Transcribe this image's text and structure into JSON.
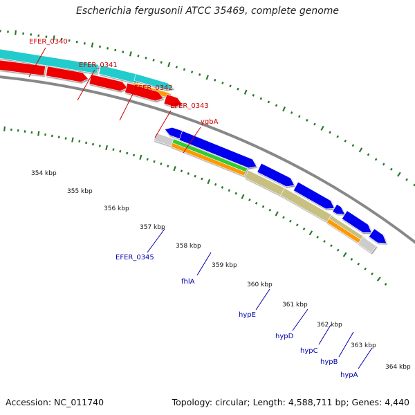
{
  "title": "Escherichia fergusonii ATCC 35469, complete genome",
  "accession_text": "Accession: NC_011740",
  "summary_text": "Topology: circular; Length: 4,588,711 bp; Genes: 4,440",
  "colors": {
    "upper_label": "#cc0000",
    "lower_label": "#0000aa",
    "backbone": "#888888",
    "tick_mark": "#2a7a2a",
    "cds_red": "#ee0000",
    "cds_cyan": "#22cccc",
    "cds_orange": "#ff9900",
    "cds_blue": "#0000ee",
    "cds_green": "#33cc33",
    "cds_khaki": "#c8c080",
    "cds_gray": "#cccccc"
  },
  "kbp_ticks": [
    "354 kbp",
    "355 kbp",
    "356 kbp",
    "357 kbp",
    "358 kbp",
    "359 kbp",
    "360 kbp",
    "361 kbp",
    "362 kbp",
    "363 kbp",
    "364 kbp"
  ],
  "upper_labels": [
    "EFER_0340",
    "EFER_0341",
    "EFER_0342",
    "EFER_0343",
    "ygbA"
  ],
  "lower_labels": [
    "EFER_0345",
    "fhlA",
    "hypE",
    "hypD",
    "hypC",
    "hypB",
    "hypA"
  ]
}
